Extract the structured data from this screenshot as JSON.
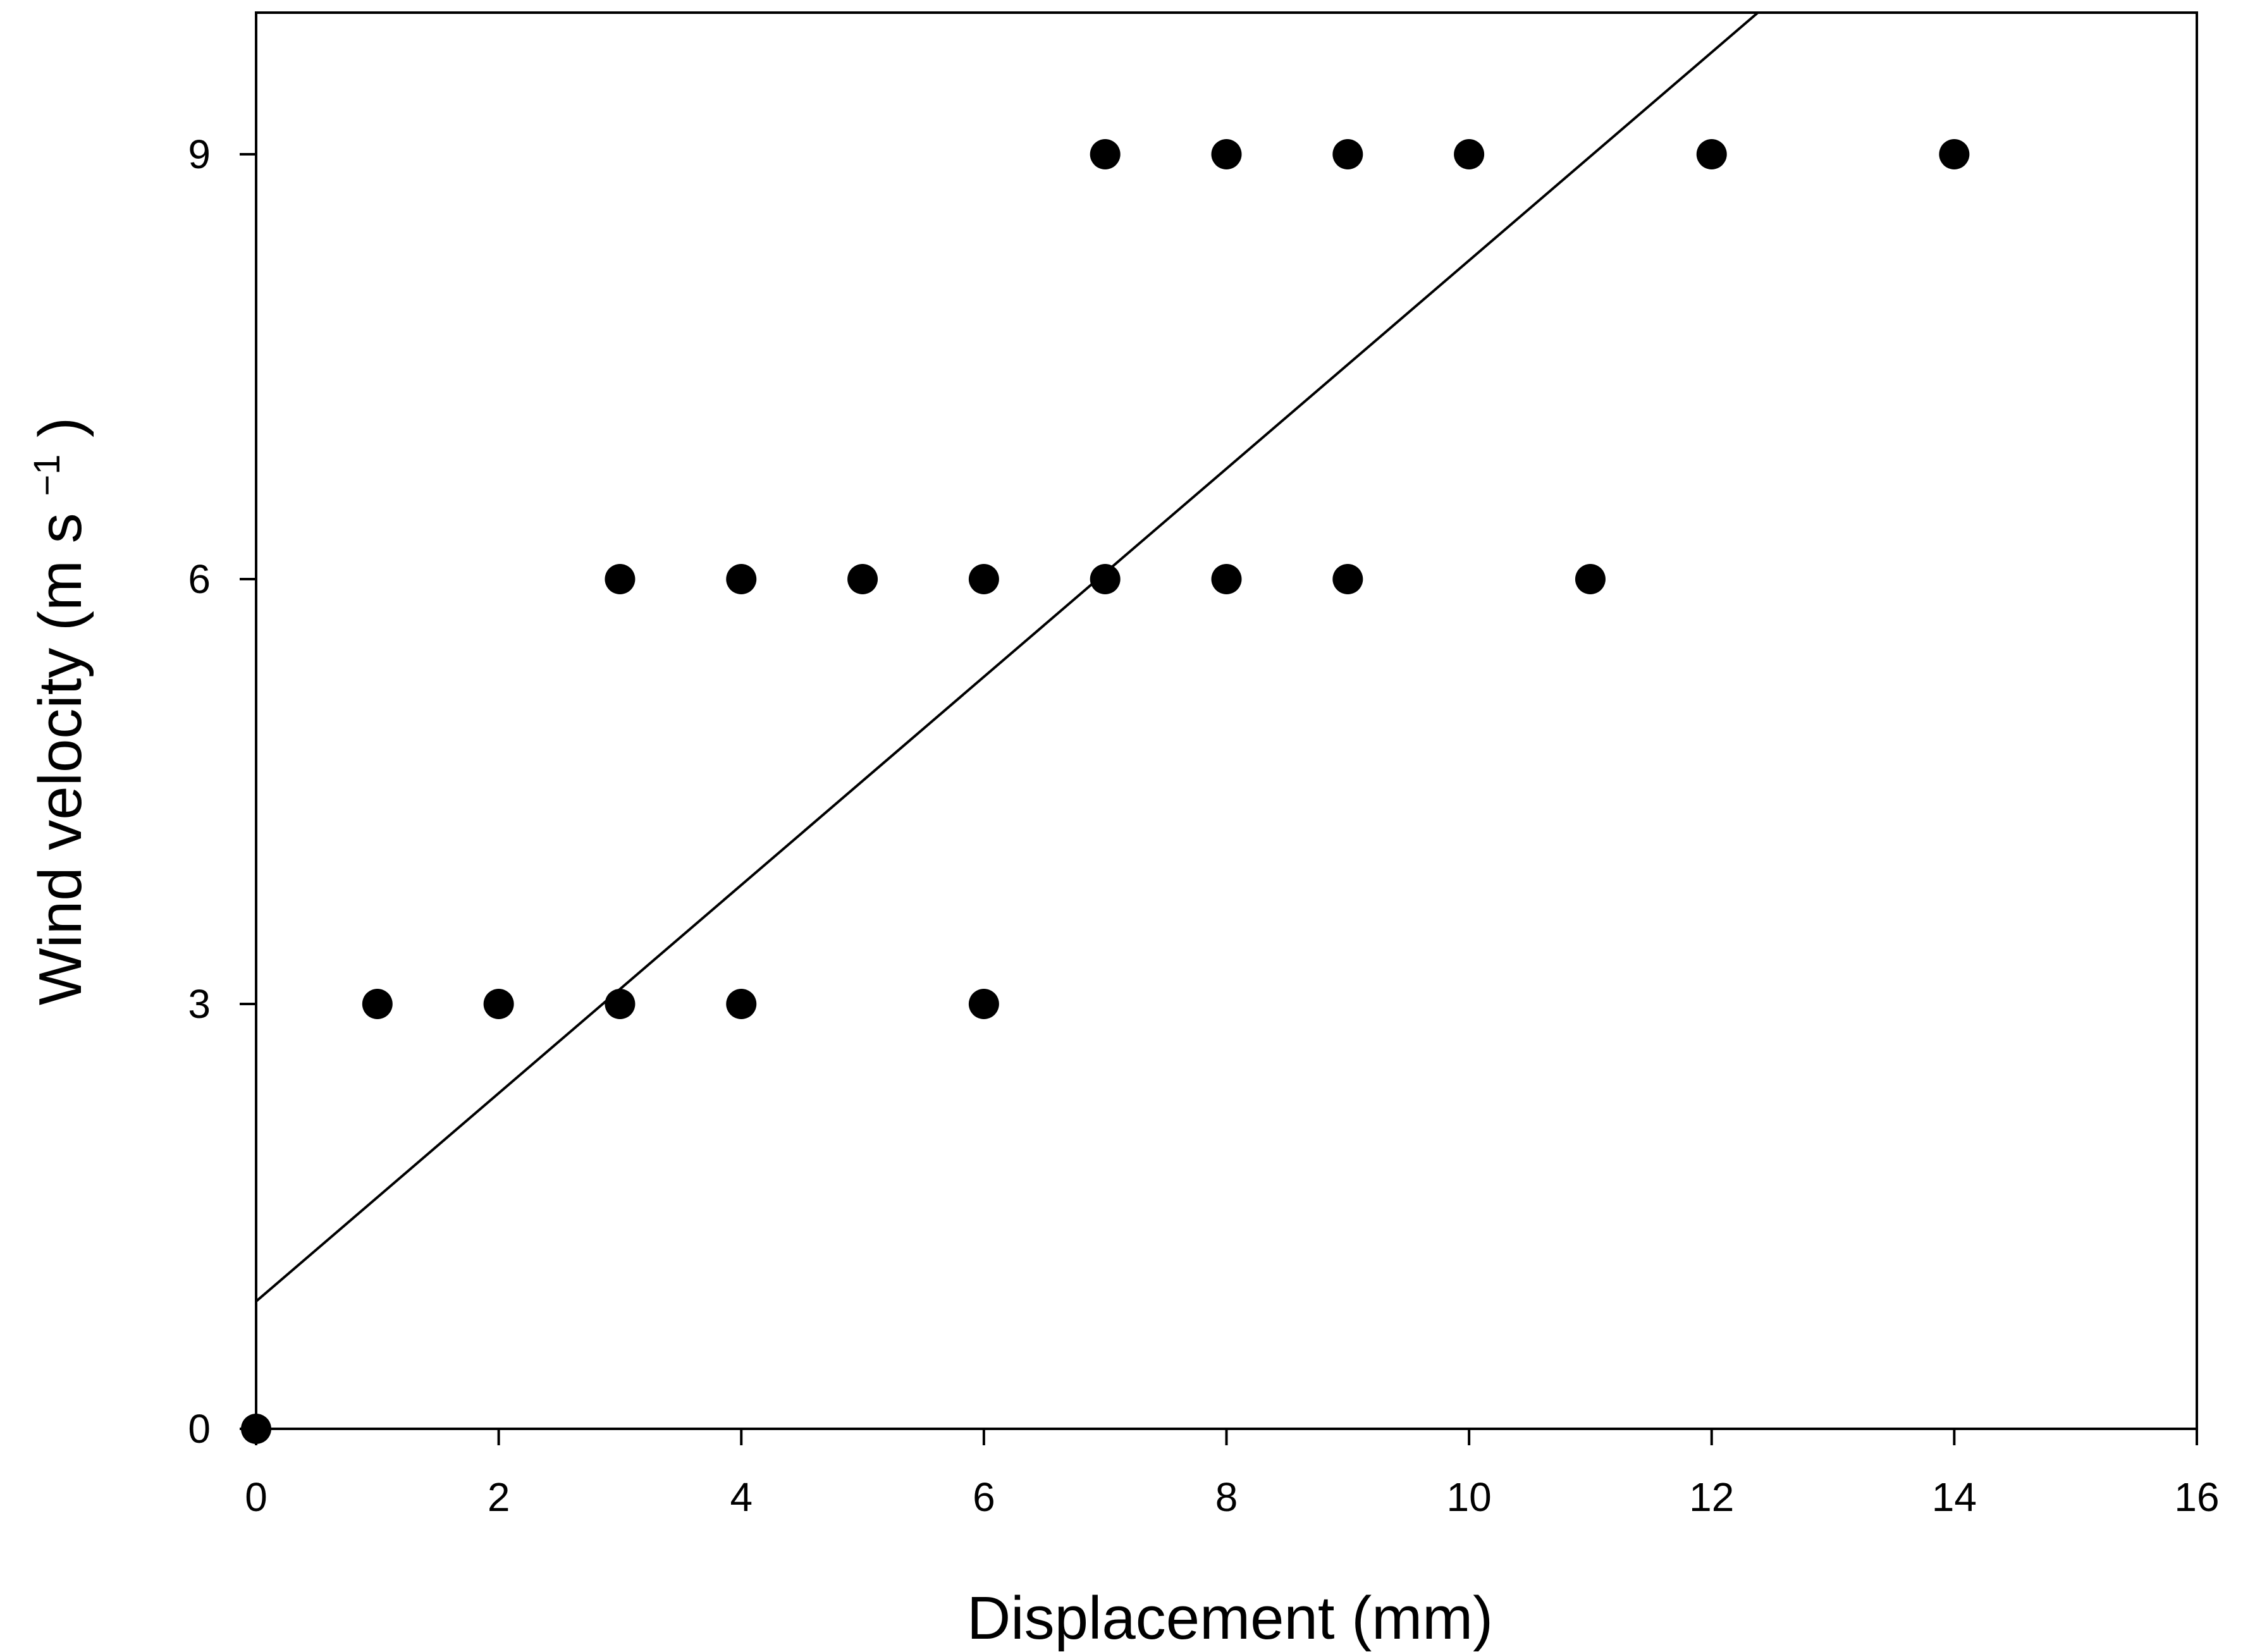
{
  "chart_data": {
    "type": "scatter",
    "title": "",
    "xlabel": "Displacement (mm)",
    "ylabel": {
      "main": "Wind velocity (m s",
      "superscript": "−1",
      "close": ")"
    },
    "xlim": [
      0,
      16
    ],
    "ylim": [
      0,
      10
    ],
    "xticks": [
      0,
      2,
      4,
      6,
      8,
      10,
      12,
      14,
      16
    ],
    "yticks": [
      0,
      3,
      6,
      9
    ],
    "grid": false,
    "legend": "none",
    "series": [
      {
        "points": [
          {
            "x": 0,
            "y": 0
          },
          {
            "x": 1,
            "y": 3
          },
          {
            "x": 2,
            "y": 3
          },
          {
            "x": 3,
            "y": 3
          },
          {
            "x": 4,
            "y": 3
          },
          {
            "x": 6,
            "y": 3
          },
          {
            "x": 3,
            "y": 6
          },
          {
            "x": 4,
            "y": 6
          },
          {
            "x": 5,
            "y": 6
          },
          {
            "x": 6,
            "y": 6
          },
          {
            "x": 7,
            "y": 6
          },
          {
            "x": 8,
            "y": 6
          },
          {
            "x": 9,
            "y": 6
          },
          {
            "x": 11,
            "y": 6
          },
          {
            "x": 7,
            "y": 9
          },
          {
            "x": 8,
            "y": 9
          },
          {
            "x": 9,
            "y": 9
          },
          {
            "x": 10,
            "y": 9
          },
          {
            "x": 12,
            "y": 9
          },
          {
            "x": 14,
            "y": 9
          }
        ]
      }
    ],
    "trendline": {
      "type": "linear",
      "slope": 0.735,
      "intercept": 0.9
    },
    "colors": {
      "marker": "#000000",
      "line": "#000000",
      "axis": "#000000",
      "background": "#ffffff"
    }
  }
}
